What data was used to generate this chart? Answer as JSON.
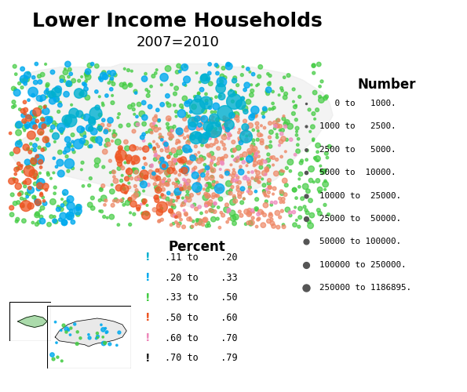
{
  "title": "Lower Income Households",
  "subtitle": "2007=2010",
  "title_fontsize": 18,
  "subtitle_fontsize": 13,
  "bg_color": "#ffffff",
  "map_placeholder_color": "#f0f0f0",
  "legend_percent_title": "Percent",
  "legend_number_title": "Number",
  "percent_entries": [
    {
      "label": ".11 to    .20",
      "color": "#00b0d0"
    },
    {
      "label": ".20 to    .33",
      "color": "#00aaee"
    },
    {
      "label": ".33 to    .50",
      "color": "#44cc44"
    },
    {
      "label": ".50 to    .60",
      "color": "#ee5522"
    },
    {
      "label": ".60 to    .70",
      "color": "#ee88bb"
    },
    {
      "label": ".70 to    .79",
      "color": "#222222"
    }
  ],
  "number_entries": [
    {
      "label": "   0 to   1000.",
      "size": 2
    },
    {
      "label": "1000 to   2500.",
      "size": 4
    },
    {
      "label": "2500 to   5000.",
      "size": 6
    },
    {
      "label": "5000 to  10000.",
      "size": 9
    },
    {
      "label": "10000 to  25000.",
      "size": 13
    },
    {
      "label": "25000 to  50000.",
      "size": 18
    },
    {
      "label": "50000 to 100000.",
      "size": 24
    },
    {
      "label": "100000 to 250000.",
      "size": 32
    },
    {
      "label": "250000 to 1186895.",
      "size": 42
    }
  ]
}
